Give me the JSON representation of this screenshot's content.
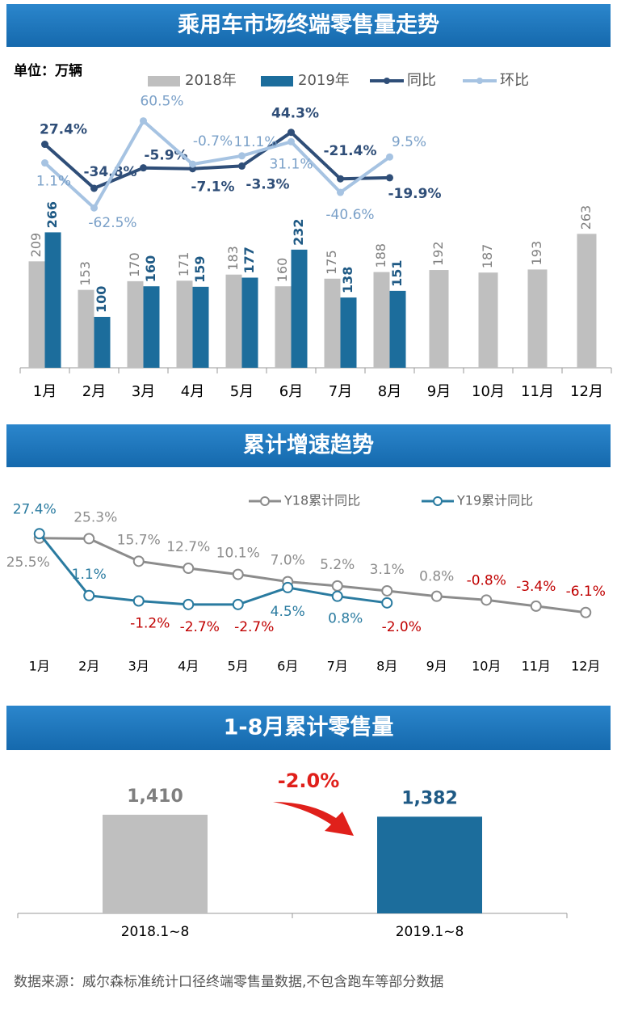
{
  "chart_data": [
    {
      "type": "combo",
      "title": "乘用车市场终端零售量走势",
      "unit": "单位：万辆",
      "categories": [
        "1月",
        "2月",
        "3月",
        "4月",
        "5月",
        "6月",
        "7月",
        "8月",
        "9月",
        "10月",
        "11月",
        "12月"
      ],
      "series": [
        {
          "name": "2018年",
          "type": "bar",
          "color": "#bfbfbf",
          "values": [
            209,
            153,
            170,
            171,
            183,
            160,
            175,
            188,
            192,
            187,
            193,
            263
          ]
        },
        {
          "name": "2019年",
          "type": "bar",
          "color": "#1c6d9c",
          "values": [
            266,
            100,
            160,
            159,
            177,
            232,
            138,
            151,
            null,
            null,
            null,
            null
          ]
        },
        {
          "name": "同比",
          "type": "line",
          "axis": "y2",
          "color": "#2f4e78",
          "values": [
            27.4,
            -34.8,
            -5.9,
            -7.1,
            -3.3,
            44.3,
            -21.4,
            -19.9,
            null,
            null,
            null,
            null
          ],
          "value_labels": [
            "27.4%",
            "-34.8%",
            "-5.9%",
            "-7.1%",
            "-3.3%",
            "44.3%",
            "-21.4%",
            "-19.9%",
            null,
            null,
            null,
            null
          ]
        },
        {
          "name": "环比",
          "type": "line",
          "axis": "y2",
          "color": "#a6c3e2",
          "values": [
            1.1,
            -62.5,
            60.5,
            -0.7,
            11.1,
            31.1,
            -40.6,
            9.5,
            null,
            null,
            null,
            null
          ],
          "value_labels": [
            "1.1%",
            "-62.5%",
            "60.5%",
            "-0.7%",
            "11.1%",
            "31.1%",
            "-40.6%",
            "9.5%",
            null,
            null,
            null,
            null
          ]
        }
      ],
      "ylim": [
        0,
        300
      ],
      "y2lim": [
        -100,
        100
      ]
    },
    {
      "type": "line",
      "title": "累计增速趋势",
      "categories": [
        "1月",
        "2月",
        "3月",
        "4月",
        "5月",
        "6月",
        "7月",
        "8月",
        "9月",
        "10月",
        "11月",
        "12月"
      ],
      "series": [
        {
          "name": "Y18累计同比",
          "color": "#8c8c8c",
          "values": [
            25.5,
            25.3,
            15.7,
            12.7,
            10.1,
            7.0,
            5.2,
            3.1,
            0.8,
            -0.8,
            -3.4,
            -6.1
          ],
          "value_labels": [
            "25.5%",
            "25.3%",
            "15.7%",
            "12.7%",
            "10.1%",
            "7.0%",
            "5.2%",
            "3.1%",
            "0.8%",
            "-0.8%",
            "-3.4%",
            "-6.1%"
          ]
        },
        {
          "name": "Y19累计同比",
          "color": "#2a7ba0",
          "values": [
            27.4,
            1.1,
            -1.2,
            -2.7,
            -2.7,
            4.5,
            0.8,
            -2.0,
            null,
            null,
            null,
            null
          ],
          "value_labels": [
            "27.4%",
            "1.1%",
            "-1.2%",
            "-2.7%",
            "-2.7%",
            "4.5%",
            "0.8%",
            "-2.0%",
            null,
            null,
            null,
            null
          ]
        }
      ],
      "ylim": [
        -10,
        30
      ],
      "negative_label_color": "#c00000"
    },
    {
      "type": "bar",
      "title": "1-8月累计零售量",
      "categories": [
        "2018.1~8",
        "2019.1~8"
      ],
      "values": [
        1410,
        1382
      ],
      "value_labels": [
        "1,410",
        "1,382"
      ],
      "colors": [
        "#bfbfbf",
        "#1c6d9c"
      ],
      "annotation": "-2.0%",
      "ylim": [
        0,
        1600
      ]
    }
  ],
  "source": "数据来源：威尔森标准统计口径终端零售量数据,不包含跑车等部分数据"
}
